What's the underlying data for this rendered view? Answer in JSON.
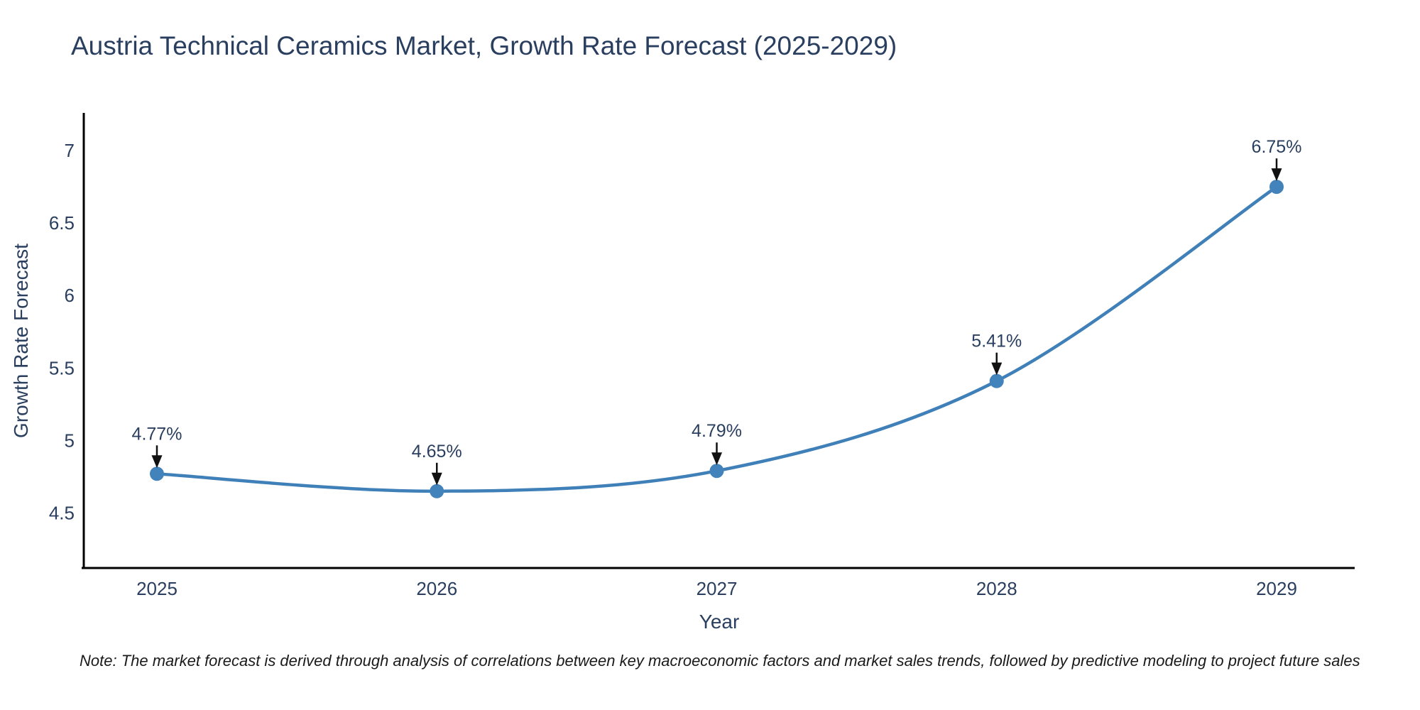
{
  "chart_data": {
    "type": "line",
    "title": "Austria Technical Ceramics Market, Growth Rate Forecast (2025-2029)",
    "xlabel": "Year",
    "ylabel": "Growth Rate Forecast",
    "categories": [
      "2025",
      "2026",
      "2027",
      "2028",
      "2029"
    ],
    "series": [
      {
        "name": "Growth Rate Forecast",
        "values": [
          4.77,
          4.65,
          4.79,
          5.41,
          6.75
        ]
      }
    ],
    "point_labels": [
      "4.77%",
      "4.65%",
      "4.79%",
      "5.41%",
      "6.75%"
    ],
    "yticks": [
      4.5,
      5,
      5.5,
      6,
      6.5,
      7
    ],
    "ytick_labels": [
      "4.5",
      "5",
      "5.5",
      "6",
      "6.5",
      "7"
    ],
    "ylim": [
      4.12,
      7.26
    ],
    "grid": false,
    "legend": "none",
    "curve": "spline",
    "colors": {
      "line": "#4080b8",
      "marker": "#4383bb",
      "axis": "#000000",
      "text": "#2a3f5f",
      "annotation_arrow": "#111111"
    }
  },
  "note": {
    "text": "Note: The market forecast is derived through analysis of correlations between key macroeconomic factors and market sales trends, followed by predictive modeling to project future sales"
  }
}
